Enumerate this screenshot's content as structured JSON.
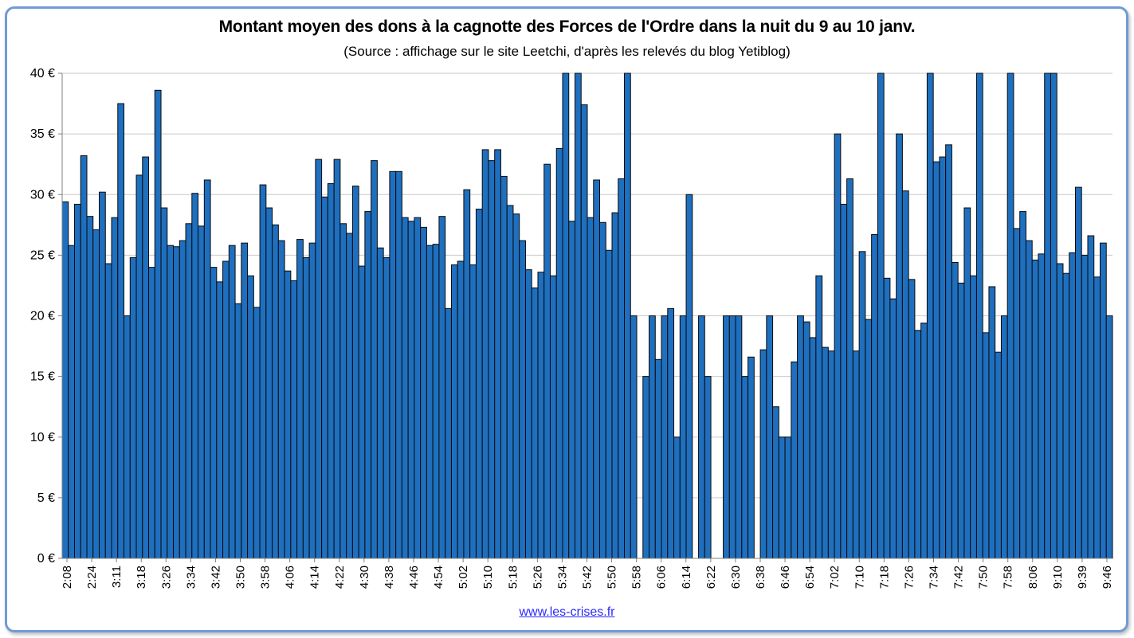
{
  "chart_data": {
    "type": "bar",
    "title": "Montant moyen des dons à la cagnotte des Forces de l'Ordre dans la nuit du 9 au 10 janv.",
    "subtitle": "(Source : affichage sur le site Leetchi, d'après les relevés du blog Yetiblog)",
    "xlabel": "",
    "ylabel": "",
    "ylim": [
      0,
      40
    ],
    "grid": true,
    "bar_color": "#1f6fbf",
    "y_ticks": [
      "0 €",
      "5 €",
      "10 €",
      "15 €",
      "20 €",
      "25 €",
      "30 €",
      "35 €",
      "40 €"
    ],
    "x_tick_labels": [
      "2:08",
      "2:24",
      "3:11",
      "3:18",
      "3:26",
      "3:34",
      "3:42",
      "3:50",
      "3:58",
      "4:06",
      "4:14",
      "4:22",
      "4:30",
      "4:38",
      "4:46",
      "4:54",
      "5:02",
      "5:10",
      "5:18",
      "5:26",
      "5:34",
      "5:42",
      "5:50",
      "5:58",
      "6:06",
      "6:14",
      "6:22",
      "6:30",
      "6:38",
      "6:46",
      "6:54",
      "7:02",
      "7:10",
      "7:18",
      "7:26",
      "7:34",
      "7:42",
      "7:50",
      "7:58",
      "8:06",
      "9:10",
      "9:39",
      "9:46"
    ],
    "values": [
      29.4,
      25.8,
      29.2,
      33.2,
      28.2,
      27.1,
      30.2,
      24.3,
      28.1,
      37.5,
      20,
      24.8,
      31.6,
      33.1,
      24,
      38.6,
      28.9,
      25.8,
      25.7,
      26.2,
      27.6,
      30.1,
      27.4,
      31.2,
      24,
      22.8,
      24.5,
      25.8,
      21,
      26,
      23.3,
      20.7,
      30.8,
      28.9,
      27.5,
      26.2,
      23.7,
      22.9,
      26.3,
      24.8,
      26,
      32.9,
      29.8,
      30.9,
      32.9,
      27.6,
      26.8,
      30.7,
      24.1,
      28.6,
      32.8,
      25.6,
      24.8,
      31.9,
      31.9,
      28.1,
      27.8,
      28.1,
      27.3,
      25.8,
      25.9,
      28.2,
      20.6,
      24.2,
      24.5,
      30.4,
      24.2,
      28.8,
      33.7,
      32.8,
      33.7,
      31.5,
      29.1,
      28.4,
      26.2,
      23.8,
      22.3,
      23.6,
      32.5,
      23.3,
      33.8,
      40,
      27.8,
      40,
      37.4,
      28.1,
      31.2,
      27.7,
      25.4,
      28.5,
      31.3,
      40,
      20,
      0,
      15,
      20,
      16.4,
      20,
      20.6,
      10,
      20,
      30,
      0,
      20,
      15,
      0,
      0,
      20,
      20,
      20,
      15,
      16.6,
      0,
      17.2,
      20,
      12.5,
      10,
      10,
      16.2,
      20,
      19.5,
      18.2,
      23.3,
      17.4,
      17.1,
      35,
      29.2,
      31.3,
      17.1,
      25.3,
      19.7,
      26.7,
      40,
      23.1,
      21.4,
      35,
      30.3,
      23,
      18.8,
      19.4,
      40,
      32.7,
      33.1,
      34.1,
      24.4,
      22.7,
      28.9,
      23.3,
      40,
      18.6,
      22.4,
      17,
      20,
      40,
      27.2,
      28.6,
      26.2,
      24.6,
      25.1,
      40,
      40,
      24.3,
      23.5,
      25.2,
      30.6,
      25,
      26.6,
      23.2,
      26,
      20
    ]
  },
  "footer_link": "www.les-crises.fr"
}
